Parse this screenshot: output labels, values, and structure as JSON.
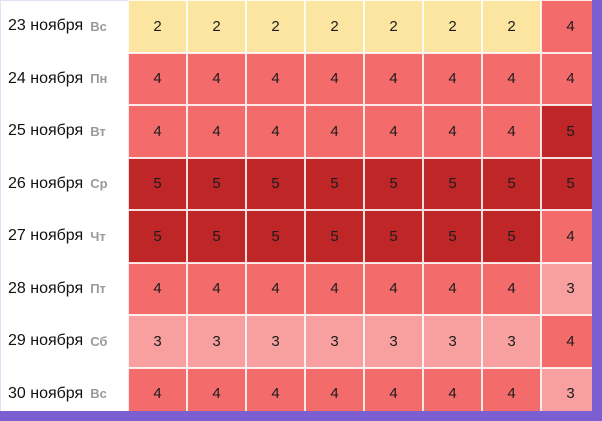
{
  "legend": {
    "colors": {
      "2": "#fbe5a0",
      "3": "#f8a0a0",
      "4": "#f46b6b",
      "5": "#bf2628"
    }
  },
  "rows": [
    {
      "date": "23 ноября",
      "weekday": "Вс",
      "values": [
        2,
        2,
        2,
        2,
        2,
        2,
        2,
        4
      ]
    },
    {
      "date": "24 ноября",
      "weekday": "Пн",
      "values": [
        4,
        4,
        4,
        4,
        4,
        4,
        4,
        4
      ]
    },
    {
      "date": "25 ноября",
      "weekday": "Вт",
      "values": [
        4,
        4,
        4,
        4,
        4,
        4,
        4,
        5
      ]
    },
    {
      "date": "26 ноября",
      "weekday": "Ср",
      "values": [
        5,
        5,
        5,
        5,
        5,
        5,
        5,
        5
      ]
    },
    {
      "date": "27 ноября",
      "weekday": "Чт",
      "values": [
        5,
        5,
        5,
        5,
        5,
        5,
        5,
        4
      ]
    },
    {
      "date": "28 ноября",
      "weekday": "Пт",
      "values": [
        4,
        4,
        4,
        4,
        4,
        4,
        4,
        3
      ]
    },
    {
      "date": "29 ноября",
      "weekday": "Сб",
      "values": [
        3,
        3,
        3,
        3,
        3,
        3,
        3,
        4
      ]
    },
    {
      "date": "30 ноября",
      "weekday": "Вс",
      "values": [
        4,
        4,
        4,
        4,
        4,
        4,
        4,
        3
      ]
    }
  ]
}
